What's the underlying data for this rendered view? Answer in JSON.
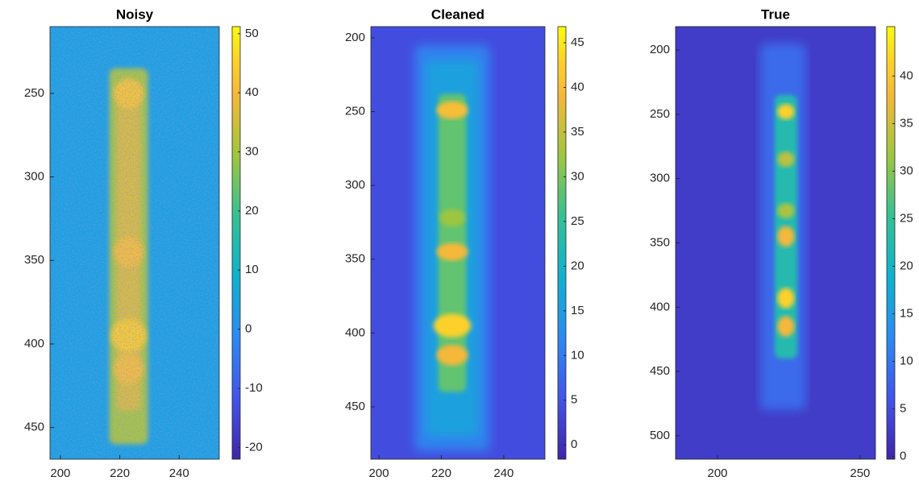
{
  "chart_data": [
    {
      "type": "heatmap",
      "title": "Noisy",
      "yreverse": true,
      "colormap": "parula",
      "xlim": [
        196.5,
        253.5
      ],
      "xticks": [
        200,
        220,
        240
      ],
      "ylim": [
        210,
        469
      ],
      "yticks": [
        250,
        300,
        350,
        400,
        450
      ],
      "clim": [
        -22,
        51.2
      ],
      "cticks": [
        -20,
        -10,
        0,
        10,
        20,
        30,
        40,
        50
      ]
    },
    {
      "type": "heatmap",
      "title": "Cleaned",
      "yreverse": true,
      "colormap": "parula",
      "xlim": [
        197.4,
        253.2
      ],
      "xticks": [
        200,
        220,
        240
      ],
      "ylim": [
        192.4,
        485.5
      ],
      "yticks": [
        200,
        250,
        300,
        350,
        400,
        450
      ],
      "clim": [
        -1.6,
        46.8
      ],
      "cticks": [
        0,
        5,
        10,
        15,
        20,
        25,
        30,
        35,
        40,
        45
      ]
    },
    {
      "type": "heatmap",
      "title": "True",
      "yreverse": true,
      "colormap": "parula",
      "xlim": [
        185.3,
        255.4
      ],
      "xticks": [
        200,
        250
      ],
      "ylim": [
        181.8,
        518.2
      ],
      "yticks": [
        200,
        250,
        300,
        350,
        400,
        450,
        500
      ],
      "clim": [
        -0.3,
        45.2
      ],
      "cticks": [
        0,
        5,
        10,
        15,
        20,
        25,
        30,
        35,
        40
      ]
    }
  ]
}
